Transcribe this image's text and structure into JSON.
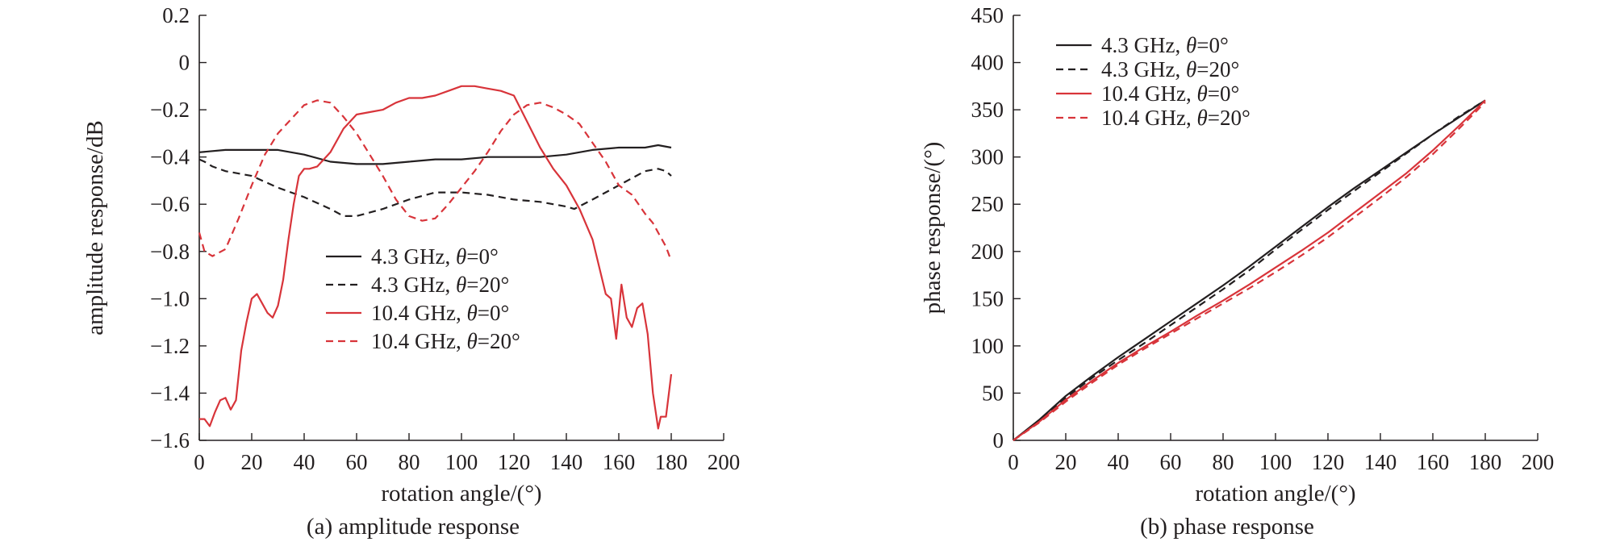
{
  "colors": {
    "black": "#231f20",
    "red": "#d8343a"
  },
  "chart_data": [
    {
      "type": "line",
      "caption": "(a) amplitude response",
      "xlabel": "rotation angle/(°)",
      "ylabel": "amplitude response/dB",
      "xlim": [
        0,
        200
      ],
      "ylim": [
        -1.6,
        0.2
      ],
      "xticks": [
        "0",
        "20",
        "40",
        "60",
        "80",
        "100",
        "120",
        "140",
        "160",
        "180",
        "200"
      ],
      "yticks": [
        "−1.6",
        "−1.4",
        "−1.2",
        "−1.0",
        "−0.8",
        "−0.6",
        "−0.4",
        "−0.2",
        "0",
        "0.2"
      ],
      "grid": false,
      "legend": "center",
      "series": [
        {
          "name": "4.3 GHz, θ=0°",
          "freq": "4.3 GHz, ",
          "theta": "θ",
          "angle": "=0°",
          "color": "#231f20",
          "dash": "solid",
          "x": [
            0,
            10,
            20,
            30,
            40,
            50,
            60,
            70,
            80,
            90,
            100,
            110,
            120,
            130,
            140,
            150,
            160,
            170,
            175,
            180
          ],
          "y": [
            -0.38,
            -0.37,
            -0.37,
            -0.37,
            -0.39,
            -0.42,
            -0.43,
            -0.43,
            -0.42,
            -0.41,
            -0.41,
            -0.4,
            -0.4,
            -0.4,
            -0.39,
            -0.37,
            -0.36,
            -0.36,
            -0.35,
            -0.36
          ]
        },
        {
          "name": "4.3 GHz, θ=20°",
          "freq": "4.3 GHz, ",
          "theta": "θ",
          "angle": "=20°",
          "color": "#231f20",
          "dash": "dashed",
          "x": [
            0,
            2,
            5,
            10,
            20,
            30,
            40,
            50,
            55,
            60,
            70,
            80,
            90,
            100,
            110,
            120,
            130,
            140,
            143,
            150,
            160,
            170,
            175,
            178,
            180
          ],
          "y": [
            -0.41,
            -0.42,
            -0.44,
            -0.46,
            -0.48,
            -0.53,
            -0.57,
            -0.62,
            -0.65,
            -0.65,
            -0.62,
            -0.58,
            -0.55,
            -0.55,
            -0.56,
            -0.58,
            -0.59,
            -0.61,
            -0.62,
            -0.58,
            -0.52,
            -0.46,
            -0.45,
            -0.46,
            -0.48
          ]
        },
        {
          "name": "10.4 GHz, θ=0°",
          "freq": "10.4 GHz, ",
          "theta": "θ",
          "angle": "=0°",
          "color": "#d8343a",
          "dash": "solid",
          "x": [
            0,
            2,
            4,
            6,
            8,
            10,
            12,
            14,
            16,
            18,
            20,
            22,
            24,
            26,
            28,
            30,
            32,
            34,
            36,
            38,
            40,
            42,
            45,
            50,
            55,
            60,
            65,
            70,
            75,
            80,
            85,
            90,
            95,
            100,
            105,
            110,
            115,
            120,
            125,
            130,
            135,
            140,
            145,
            150,
            155,
            157,
            159,
            161,
            163,
            165,
            167,
            169,
            171,
            173,
            175,
            176,
            178,
            180
          ],
          "y": [
            -1.51,
            -1.51,
            -1.54,
            -1.48,
            -1.43,
            -1.42,
            -1.47,
            -1.43,
            -1.22,
            -1.1,
            -1.0,
            -0.98,
            -1.02,
            -1.06,
            -1.08,
            -1.03,
            -0.92,
            -0.75,
            -0.6,
            -0.48,
            -0.45,
            -0.45,
            -0.44,
            -0.38,
            -0.28,
            -0.22,
            -0.21,
            -0.2,
            -0.17,
            -0.15,
            -0.15,
            -0.14,
            -0.12,
            -0.1,
            -0.1,
            -0.11,
            -0.12,
            -0.14,
            -0.25,
            -0.36,
            -0.45,
            -0.52,
            -0.62,
            -0.75,
            -0.98,
            -1.0,
            -1.17,
            -0.94,
            -1.08,
            -1.12,
            -1.04,
            -1.02,
            -1.15,
            -1.4,
            -1.55,
            -1.5,
            -1.5,
            -1.32
          ]
        },
        {
          "name": "10.4 GHz, θ=20°",
          "freq": "10.4 GHz, ",
          "theta": "θ",
          "angle": "=20°",
          "color": "#d8343a",
          "dash": "dashed",
          "x": [
            0,
            2,
            5,
            10,
            15,
            20,
            25,
            30,
            35,
            40,
            45,
            50,
            55,
            60,
            65,
            70,
            75,
            80,
            85,
            90,
            95,
            100,
            105,
            110,
            115,
            120,
            125,
            130,
            135,
            140,
            145,
            150,
            155,
            160,
            165,
            170,
            173,
            176,
            178,
            180
          ],
          "y": [
            -0.72,
            -0.8,
            -0.82,
            -0.79,
            -0.66,
            -0.52,
            -0.39,
            -0.3,
            -0.24,
            -0.18,
            -0.16,
            -0.17,
            -0.23,
            -0.3,
            -0.39,
            -0.48,
            -0.58,
            -0.65,
            -0.67,
            -0.66,
            -0.6,
            -0.53,
            -0.46,
            -0.38,
            -0.29,
            -0.22,
            -0.18,
            -0.17,
            -0.19,
            -0.22,
            -0.26,
            -0.34,
            -0.42,
            -0.52,
            -0.56,
            -0.64,
            -0.68,
            -0.74,
            -0.78,
            -0.84
          ]
        }
      ]
    },
    {
      "type": "line",
      "caption": "(b) phase response",
      "xlabel": "rotation angle/(°)",
      "ylabel": "phase response/(°)",
      "xlim": [
        0,
        200
      ],
      "ylim": [
        0,
        450
      ],
      "xticks": [
        "0",
        "20",
        "40",
        "60",
        "80",
        "100",
        "120",
        "140",
        "160",
        "180",
        "200"
      ],
      "yticks": [
        "0",
        "50",
        "100",
        "150",
        "200",
        "250",
        "300",
        "350",
        "400",
        "450"
      ],
      "grid": false,
      "legend": "top-left",
      "series": [
        {
          "name": "4.3 GHz, θ=0°",
          "freq": "4.3 GHz, ",
          "theta": "θ",
          "angle": "=0°",
          "color": "#231f20",
          "dash": "solid",
          "x": [
            0,
            10,
            20,
            30,
            40,
            50,
            60,
            70,
            80,
            90,
            100,
            110,
            120,
            130,
            140,
            150,
            160,
            170,
            180
          ],
          "y": [
            0,
            22,
            47,
            68,
            88,
            107,
            126,
            145,
            164,
            184,
            205,
            226,
            247,
            267,
            286,
            305,
            324,
            342,
            360
          ]
        },
        {
          "name": "4.3 GHz, θ=20°",
          "freq": "4.3 GHz, ",
          "theta": "θ",
          "angle": "=20°",
          "color": "#231f20",
          "dash": "dashed",
          "x": [
            0,
            10,
            20,
            30,
            40,
            50,
            60,
            70,
            80,
            90,
            100,
            110,
            120,
            130,
            140,
            150,
            160,
            170,
            180
          ],
          "y": [
            0,
            21,
            45,
            66,
            85,
            103,
            122,
            141,
            160,
            180,
            202,
            223,
            244,
            264,
            284,
            304,
            324,
            343,
            360
          ]
        },
        {
          "name": "10.4 GHz, θ=0°",
          "freq": "10.4 GHz, ",
          "theta": "θ",
          "angle": "=0°",
          "color": "#d8343a",
          "dash": "solid",
          "x": [
            0,
            10,
            20,
            30,
            40,
            50,
            60,
            70,
            80,
            90,
            100,
            110,
            120,
            130,
            140,
            150,
            160,
            170,
            180
          ],
          "y": [
            0,
            20,
            43,
            63,
            82,
            99,
            115,
            132,
            148,
            165,
            183,
            201,
            220,
            241,
            262,
            283,
            307,
            333,
            360
          ]
        },
        {
          "name": "10.4 GHz, θ=20°",
          "freq": "10.4 GHz, ",
          "theta": "θ",
          "angle": "=20°",
          "color": "#d8343a",
          "dash": "dashed",
          "x": [
            0,
            10,
            20,
            30,
            40,
            50,
            60,
            70,
            80,
            90,
            100,
            110,
            120,
            130,
            140,
            150,
            160,
            170,
            180
          ],
          "y": [
            0,
            19,
            41,
            61,
            80,
            97,
            113,
            129,
            145,
            161,
            178,
            196,
            215,
            236,
            257,
            279,
            303,
            330,
            358
          ]
        }
      ]
    }
  ]
}
